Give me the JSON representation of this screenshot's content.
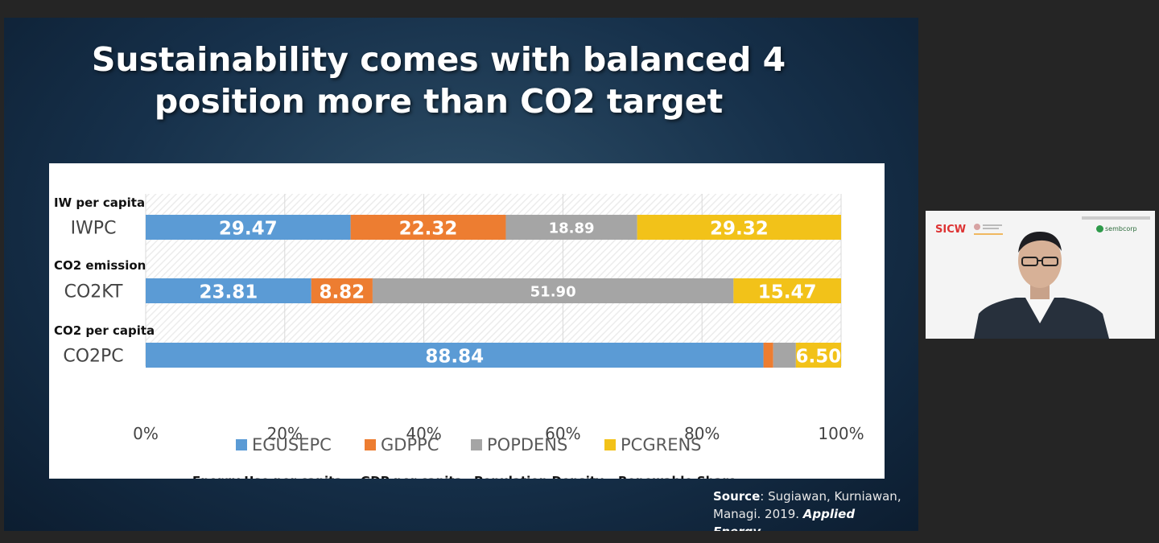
{
  "slide": {
    "title_line1": "Sustainability comes with balanced 4",
    "title_line2": "position more than CO2 target"
  },
  "chart_data": {
    "type": "bar",
    "orientation": "horizontal",
    "stacked": "percent",
    "xlim": [
      0,
      100
    ],
    "x_ticks": [
      "0%",
      "20%",
      "40%",
      "60%",
      "80%",
      "100%"
    ],
    "categories": [
      {
        "label": "IWPC",
        "sublabel": "IW per capita"
      },
      {
        "label": "CO2KT",
        "sublabel": "CO2 emission"
      },
      {
        "label": "CO2PC",
        "sublabel": "CO2 per capita"
      }
    ],
    "series": [
      {
        "name": "EGUSEPC",
        "description": "Energy Use per capita",
        "color": "#5b9bd5",
        "values": [
          29.47,
          23.81,
          88.84
        ]
      },
      {
        "name": "GDPPC",
        "description": "GDP per capita",
        "color": "#ed7d31",
        "values": [
          22.32,
          8.82,
          1.4
        ]
      },
      {
        "name": "POPDENS",
        "description": "Population Density",
        "color": "#a5a5a5",
        "values": [
          18.89,
          51.9,
          3.26
        ]
      },
      {
        "name": "PCGRENS",
        "description": "Renewable Share",
        "color": "#f2c219",
        "values": [
          29.32,
          15.47,
          6.5
        ]
      }
    ],
    "data_labels": [
      [
        "29.47",
        "22.32",
        "18.89",
        "29.32"
      ],
      [
        "23.81",
        "8.82",
        "51.90",
        "15.47"
      ],
      [
        "88.84",
        "",
        "",
        "6.50"
      ]
    ],
    "legend_position": "bottom",
    "grid": true
  },
  "source": {
    "label": "Source",
    "text": ": Sugiawan, Kurniawan, Managi. 2019. ",
    "journal": "Applied Energy"
  },
  "webcam": {
    "logo_left": "SICW",
    "logo_right": "sembcorp"
  }
}
